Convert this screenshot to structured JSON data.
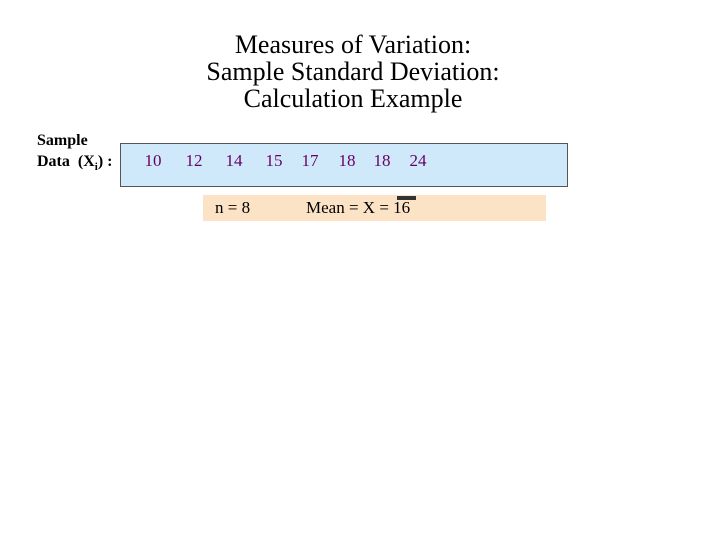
{
  "title": [
    "Measures of Variation:",
    "Sample Standard Deviation:",
    "Calculation Example"
  ],
  "sample_label": {
    "line1": "Sample",
    "prefix": "Data  (X",
    "subscript": "i",
    "suffix": ") :"
  },
  "sample_data": [
    10,
    12,
    14,
    15,
    17,
    18,
    18,
    24
  ],
  "n_label": "n = 8",
  "mean_label": "Mean = X = 16"
}
